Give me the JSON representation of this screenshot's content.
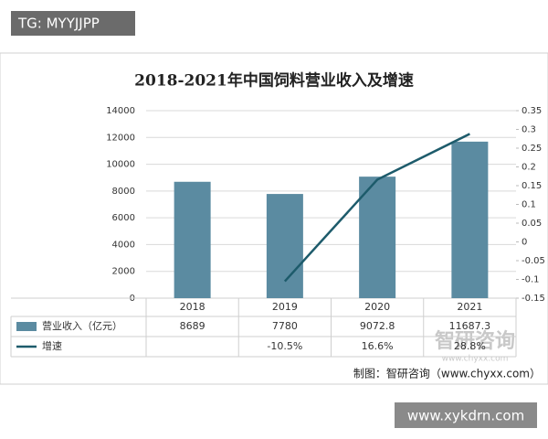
{
  "chart_data": {
    "type": "bar",
    "title": "2018-2021年中国饲料营业收入及增速",
    "categories": [
      "2018",
      "2019",
      "2020",
      "2021"
    ],
    "series": [
      {
        "name": "营业收入（亿元）",
        "type": "bar",
        "color": "#5b8ba1",
        "values": [
          8689,
          7780,
          9072.8,
          11687.3
        ]
      },
      {
        "name": "增速",
        "type": "line",
        "axis": "y2",
        "color": "#1d5b6b",
        "values": [
          null,
          -0.105,
          0.166,
          0.288
        ],
        "value_labels": [
          null,
          "-10.5%",
          "16.6%",
          "28.8%"
        ]
      }
    ],
    "ylim": [
      0,
      14000
    ],
    "yticks": [
      0,
      2000,
      4000,
      6000,
      8000,
      10000,
      12000,
      14000
    ],
    "y2lim": [
      -0.15,
      0.35
    ],
    "y2ticks": [
      -0.15,
      -0.1,
      -0.05,
      0,
      0.05,
      0.1,
      0.15,
      0.2,
      0.25,
      0.3,
      0.35
    ],
    "grid": true
  },
  "overlays": {
    "tag": "TG: MYYJJPP",
    "watermark_name": "智研咨询",
    "watermark_url": "www.chyxx.com",
    "source": "制图：智研咨询（www.chyxx.com）",
    "site": "www.xykdrn.com"
  }
}
